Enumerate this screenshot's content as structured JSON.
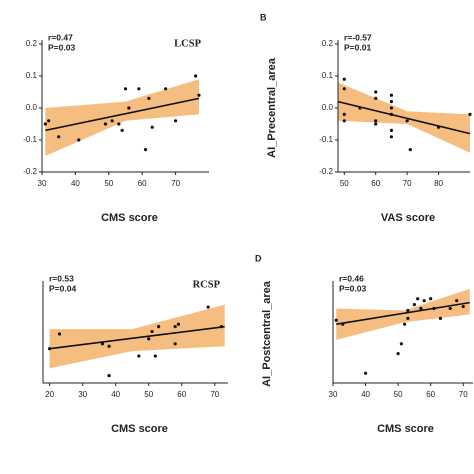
{
  "chart_data": [
    {
      "type": "scatter",
      "tag": "LCSP",
      "stats": [
        "r=0.47",
        "P=0.03"
      ],
      "xlabel": "CMS score",
      "xlim": [
        30,
        80
      ],
      "ylim": [
        -0.2,
        0.2
      ],
      "xticks": [
        30,
        40,
        50,
        60,
        70
      ],
      "yticks": [
        -0.2,
        -0.1,
        0.0,
        0.1,
        0.2
      ],
      "x": [
        31,
        32,
        35,
        41,
        49,
        51,
        53,
        54,
        55,
        56,
        59,
        61,
        62,
        63,
        67,
        70,
        76,
        77
      ],
      "y": [
        -0.05,
        -0.04,
        -0.09,
        -0.1,
        -0.05,
        -0.04,
        -0.05,
        -0.07,
        0.06,
        0.0,
        0.06,
        -0.13,
        0.03,
        -0.06,
        0.06,
        -0.04,
        0.1,
        0.04
      ],
      "fit": {
        "x": [
          31,
          77
        ],
        "y": [
          -0.07,
          0.03
        ]
      },
      "ci": {
        "x": [
          31,
          55,
          77
        ],
        "lower": [
          -0.15,
          -0.04,
          -0.02
        ],
        "upper": [
          0.0,
          0.02,
          0.09
        ]
      },
      "color": "#f5b26b"
    },
    {
      "type": "scatter",
      "panel": "B",
      "stats": [
        "r=-0.57",
        "P=0.01"
      ],
      "xlabel": "VAS score",
      "ylabel": "AI_Precentral_area",
      "xlim": [
        48,
        90
      ],
      "ylim": [
        -0.2,
        0.2
      ],
      "xticks": [
        50,
        60,
        70,
        80
      ],
      "yticks": [
        -0.2,
        -0.1,
        0.0,
        0.1,
        0.2
      ],
      "x": [
        50,
        50,
        50,
        50,
        55,
        60,
        60,
        60,
        60,
        65,
        65,
        65,
        65,
        65,
        65,
        70,
        71,
        80,
        90
      ],
      "y": [
        0.09,
        0.06,
        -0.02,
        -0.04,
        0.0,
        0.05,
        0.03,
        -0.04,
        -0.05,
        0.04,
        0.02,
        0.0,
        -0.02,
        -0.07,
        -0.09,
        -0.04,
        -0.13,
        -0.06,
        -0.02
      ],
      "fit": {
        "x": [
          48,
          90
        ],
        "y": [
          0.02,
          -0.08
        ]
      },
      "ci": {
        "x": [
          48,
          70,
          90
        ],
        "lower": [
          -0.04,
          -0.05,
          -0.14
        ],
        "upper": [
          0.08,
          -0.01,
          -0.02
        ]
      },
      "color": "#f5b26b"
    },
    {
      "type": "scatter",
      "tag": "RCSP",
      "stats": [
        "r=0.53",
        "P=0.04"
      ],
      "xlabel": "CMS score",
      "xlim": [
        18,
        74
      ],
      "ylim": [
        -0.1,
        0.3
      ],
      "xticks": [
        20,
        30,
        40,
        50,
        60,
        70
      ],
      "x": [
        20,
        23,
        36,
        38,
        38,
        47,
        50,
        51,
        52,
        53,
        58,
        58,
        59,
        68,
        72
      ],
      "y": [
        0.04,
        0.1,
        0.06,
        0.05,
        -0.07,
        0.01,
        0.08,
        0.11,
        0.01,
        0.13,
        0.13,
        0.06,
        0.14,
        0.21,
        0.13
      ],
      "fit": {
        "x": [
          20,
          73
        ],
        "y": [
          0.04,
          0.13
        ]
      },
      "ci": {
        "x": [
          20,
          45,
          73
        ],
        "lower": [
          -0.04,
          0.03,
          0.05
        ],
        "upper": [
          0.12,
          0.12,
          0.22
        ]
      },
      "color": "#f5b26b"
    },
    {
      "type": "scatter",
      "panel": "D",
      "stats": [
        "r=0.46",
        "P=0.03"
      ],
      "xlabel": "CMS score",
      "ylabel": "AI_Postcentral_area",
      "xlim": [
        30,
        73
      ],
      "ylim": [
        -0.35,
        0.15
      ],
      "xticks": [
        30,
        40,
        50,
        60,
        70
      ],
      "x": [
        31,
        33,
        40,
        50,
        51,
        52,
        53,
        53,
        55,
        56,
        57,
        58,
        60,
        61,
        63,
        66,
        68,
        70
      ],
      "y": [
        -0.03,
        -0.05,
        -0.3,
        -0.2,
        -0.15,
        -0.05,
        0.02,
        -0.02,
        0.05,
        0.08,
        0.03,
        0.07,
        0.08,
        0.03,
        -0.02,
        0.03,
        0.07,
        0.04
      ],
      "fit": {
        "x": [
          31,
          72
        ],
        "y": [
          -0.05,
          0.06
        ]
      },
      "ci": {
        "x": [
          31,
          52,
          72
        ],
        "lower": [
          -0.13,
          -0.04,
          0.0
        ],
        "upper": [
          0.03,
          0.02,
          0.13
        ]
      },
      "color": "#f5b26b"
    }
  ]
}
